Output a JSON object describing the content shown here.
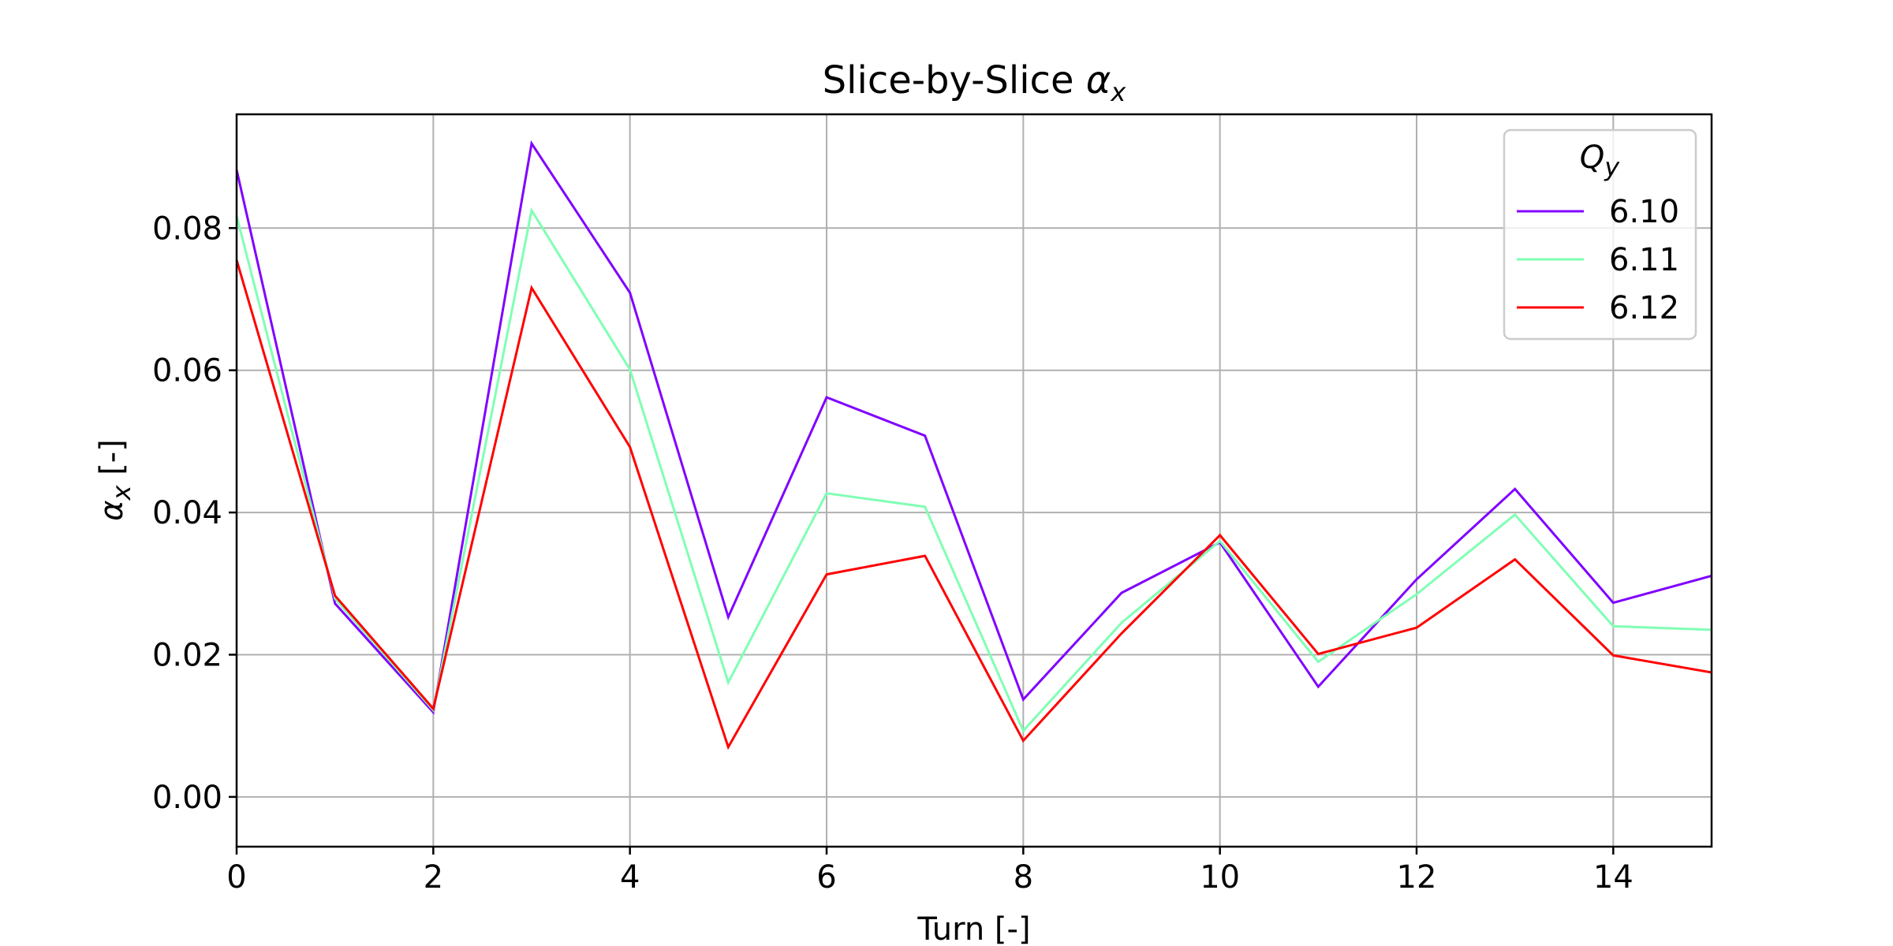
{
  "chart_data": {
    "type": "line",
    "title": "Slice-by-Slice",
    "title_symbol": "α",
    "title_symbol_sub": "x",
    "xlabel": "Turn [-]",
    "ylabel_symbol": "α",
    "ylabel_symbol_sub": "x",
    "ylabel_suffix": " [-]",
    "xlim": [
      0,
      15
    ],
    "ylim": [
      -0.007,
      0.096
    ],
    "xticks": [
      0,
      2,
      4,
      6,
      8,
      10,
      12,
      14
    ],
    "xtick_labels": [
      "0",
      "2",
      "4",
      "6",
      "8",
      "10",
      "12",
      "14"
    ],
    "yticks": [
      0.0,
      0.02,
      0.04,
      0.06,
      0.08
    ],
    "ytick_labels": [
      "0.00",
      "0.02",
      "0.04",
      "0.06",
      "0.08"
    ],
    "grid": true,
    "legend": {
      "placement": "top-right",
      "title_symbol": "Q",
      "title_symbol_sub": "y"
    },
    "x": [
      0,
      1,
      2,
      3,
      4,
      5,
      6,
      7,
      8,
      9,
      10,
      11,
      12,
      13,
      14,
      15
    ],
    "series": [
      {
        "name": "6.10",
        "color": "#8000ff",
        "values": [
          0.0882,
          0.0272,
          0.0119,
          0.0919,
          0.0709,
          0.0253,
          0.0562,
          0.0508,
          0.0137,
          0.0287,
          0.0358,
          0.0155,
          0.0306,
          0.0433,
          0.0273,
          0.0311
        ]
      },
      {
        "name": "6.11",
        "color": "#80ffb4",
        "values": [
          0.0817,
          0.0279,
          0.0122,
          0.0825,
          0.0601,
          0.0161,
          0.0427,
          0.0408,
          0.0093,
          0.0245,
          0.036,
          0.019,
          0.0285,
          0.0397,
          0.024,
          0.0235
        ]
      },
      {
        "name": "6.12",
        "color": "#ff0000",
        "values": [
          0.0755,
          0.0283,
          0.0124,
          0.0716,
          0.0492,
          0.007,
          0.0313,
          0.0339,
          0.0079,
          0.023,
          0.0368,
          0.0201,
          0.0238,
          0.0334,
          0.0199,
          0.0175
        ]
      }
    ]
  }
}
